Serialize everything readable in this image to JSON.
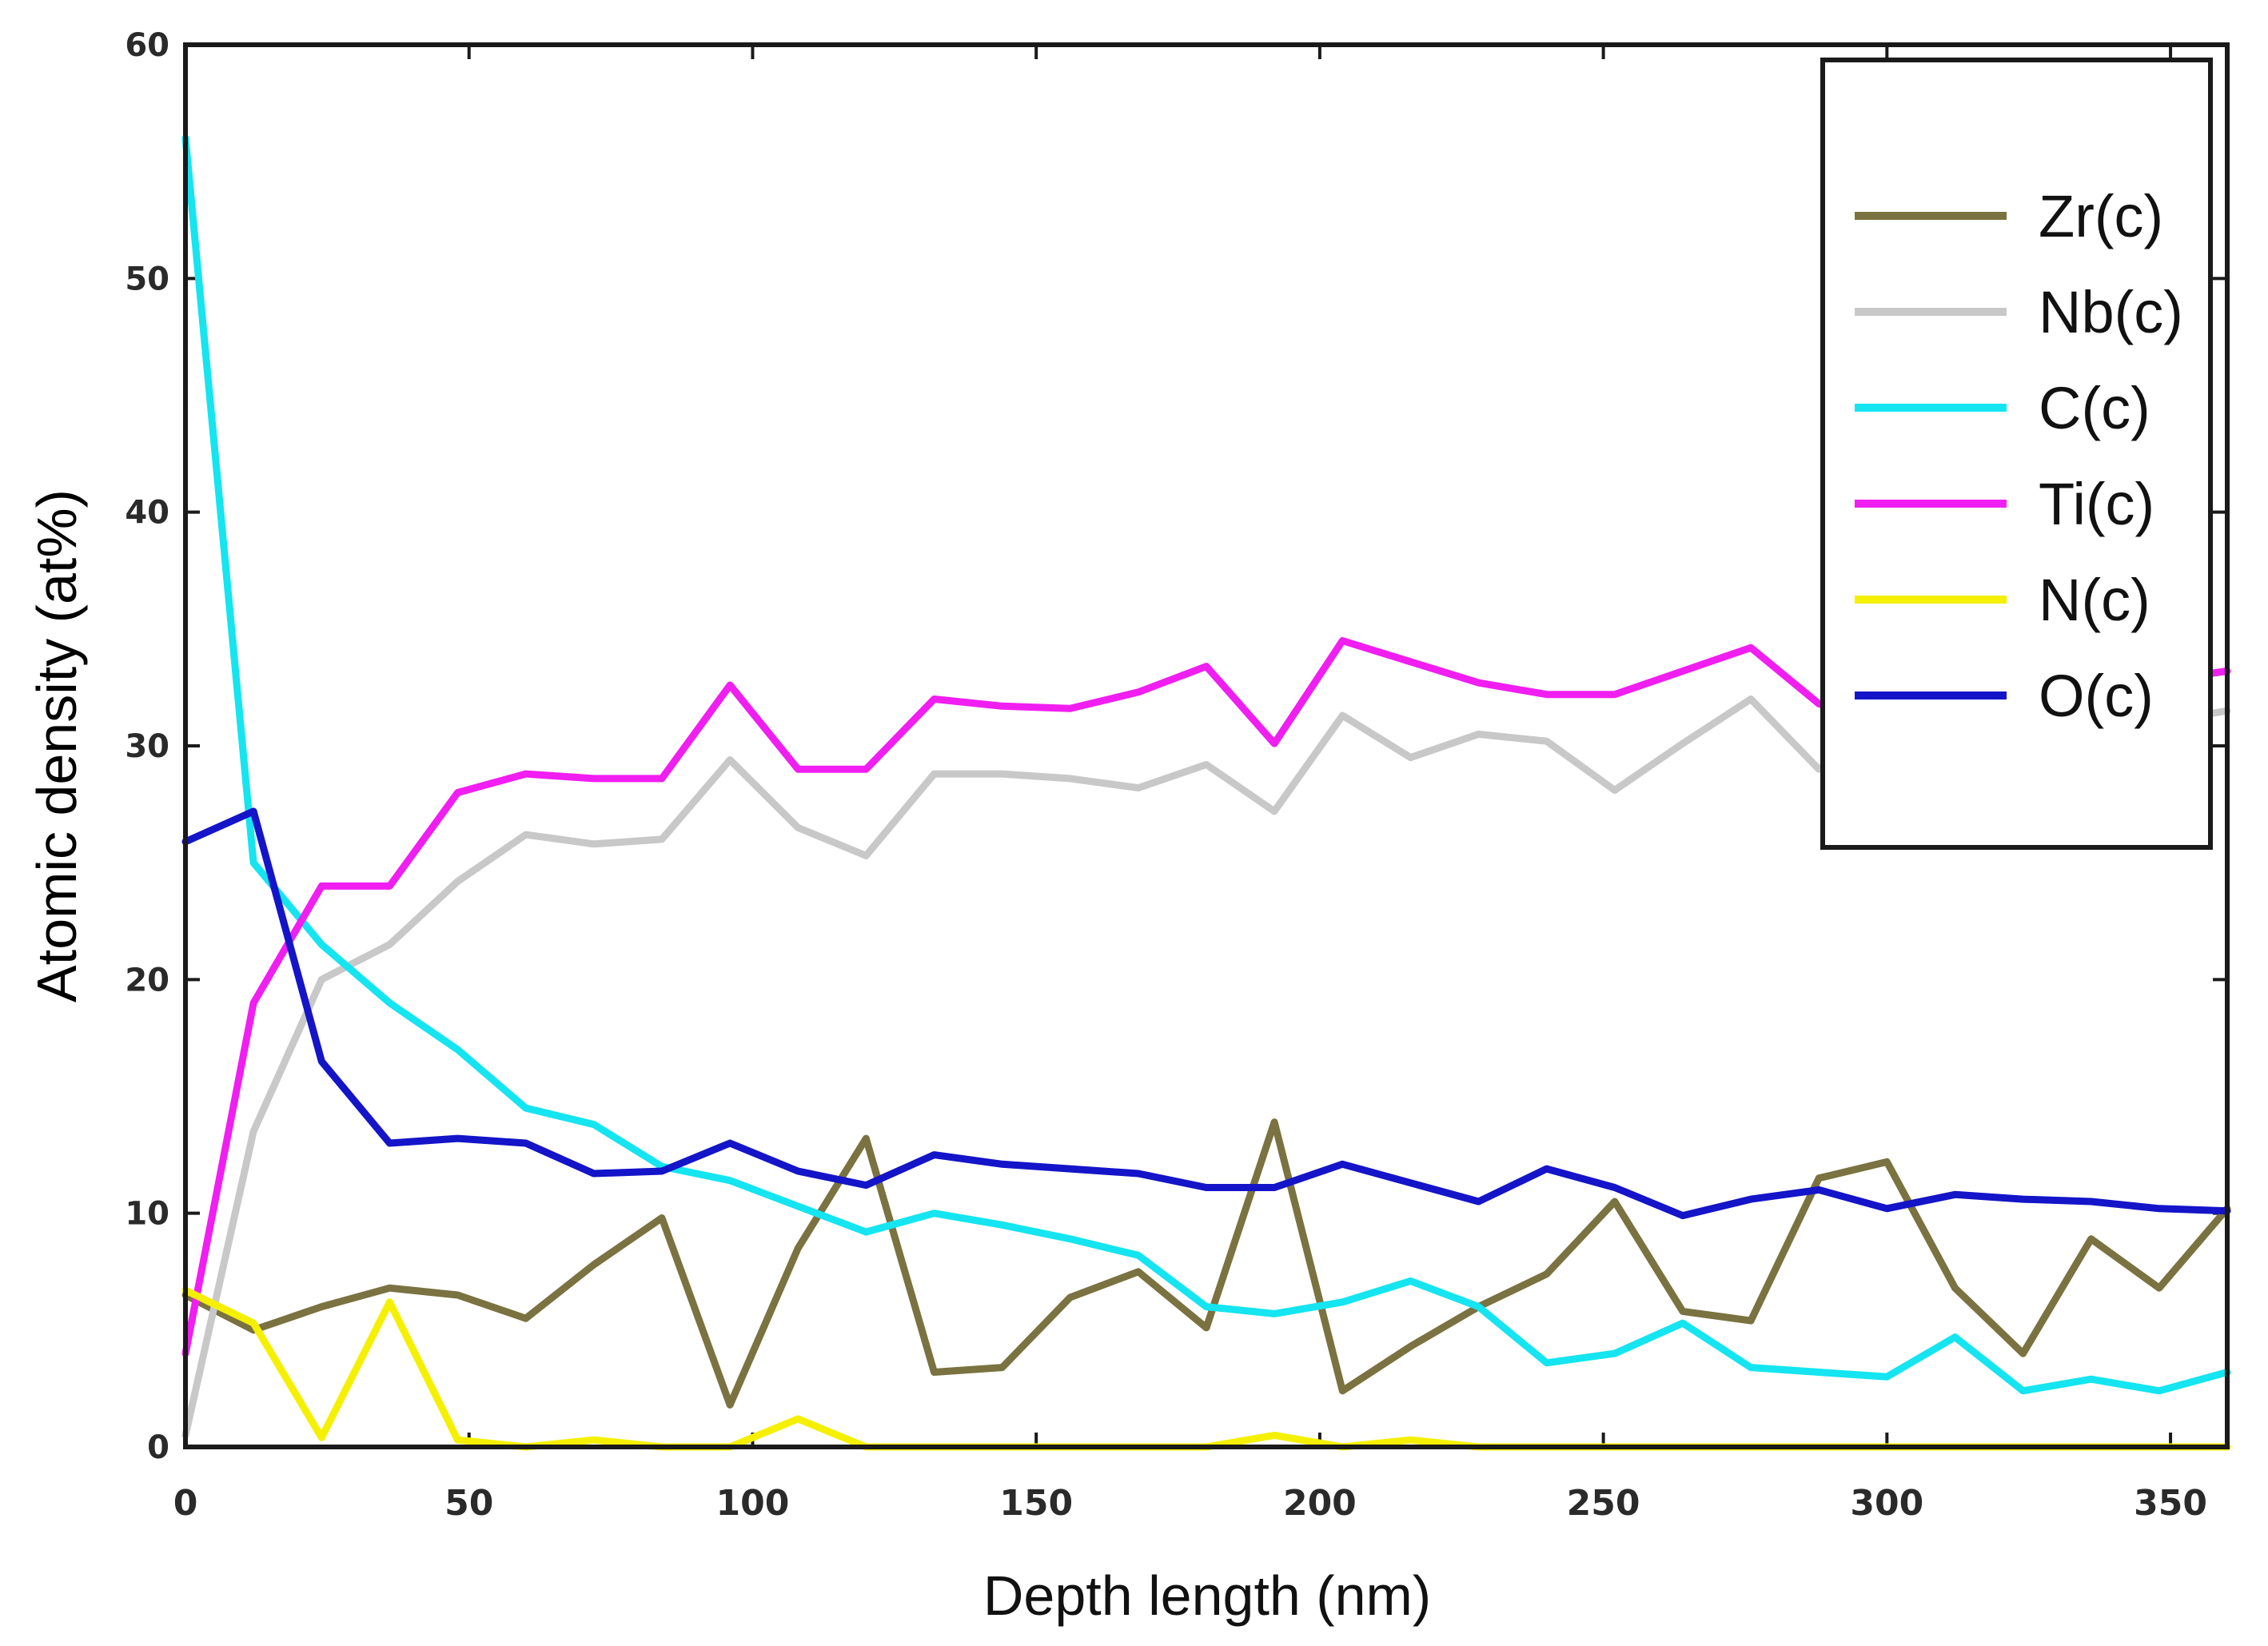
{
  "chart_data": {
    "type": "line",
    "title": "",
    "xlabel": "Depth length (nm)",
    "ylabel": "Atomic density (at%)",
    "xlim": [
      0,
      360
    ],
    "ylim": [
      0,
      60
    ],
    "x_ticks": [
      0,
      50,
      100,
      150,
      200,
      250,
      300,
      350
    ],
    "y_ticks": [
      0,
      10,
      20,
      30,
      40,
      50,
      60
    ],
    "x_tick_labels": [
      "0",
      "50",
      "100",
      "150",
      "200",
      "250",
      "300",
      "350"
    ],
    "y_tick_labels": [
      "0",
      "10",
      "20",
      "30",
      "40",
      "50",
      "60"
    ],
    "grid": false,
    "legend_position": "top-right",
    "x": [
      0,
      12,
      24,
      36,
      48,
      60,
      72,
      84,
      96,
      108,
      120,
      132,
      144,
      156,
      168,
      180,
      192,
      204,
      216,
      228,
      240,
      252,
      264,
      276,
      288,
      300,
      312,
      324,
      336,
      348,
      360
    ],
    "series": [
      {
        "name": "Zr(c)",
        "color": "#7a7240",
        "values": [
          6.5,
          5.0,
          6.0,
          6.8,
          6.5,
          5.5,
          7.8,
          9.8,
          1.8,
          8.5,
          13.2,
          3.2,
          3.4,
          6.4,
          7.5,
          5.1,
          13.9,
          2.4,
          4.3,
          6.0,
          7.4,
          10.5,
          5.8,
          5.4,
          11.5,
          12.2,
          6.8,
          4.0,
          8.9,
          6.8,
          10.2
        ]
      },
      {
        "name": "Nb(c)",
        "color": "#c8c8c8",
        "values": [
          0.5,
          13.5,
          20.0,
          21.5,
          24.2,
          26.2,
          25.8,
          26.0,
          29.4,
          26.5,
          25.3,
          28.8,
          28.8,
          28.6,
          28.2,
          29.2,
          27.2,
          31.3,
          29.5,
          30.5,
          30.2,
          28.1,
          30.1,
          32.0,
          29.0,
          31.0,
          30.0,
          29.5,
          30.5,
          31.0,
          31.5
        ]
      },
      {
        "name": "C(c)",
        "color": "#14e5f0",
        "values": [
          56.0,
          25.0,
          21.5,
          19.0,
          17.0,
          14.5,
          13.8,
          12.0,
          11.4,
          10.3,
          9.2,
          10.0,
          9.5,
          8.9,
          8.2,
          6.0,
          5.7,
          6.2,
          7.1,
          6.0,
          3.6,
          4.0,
          5.3,
          3.4,
          3.2,
          3.0,
          4.7,
          2.4,
          2.9,
          2.4,
          3.2
        ]
      },
      {
        "name": "Ti(c)",
        "color": "#f01ef0",
        "values": [
          4.0,
          19.0,
          24.0,
          24.0,
          28.0,
          28.8,
          28.6,
          28.6,
          32.6,
          29.0,
          29.0,
          32.0,
          31.7,
          31.6,
          32.3,
          33.4,
          30.1,
          34.5,
          33.6,
          32.7,
          32.2,
          32.2,
          33.2,
          34.2,
          31.8,
          31.0,
          32.5,
          32.0,
          33.0,
          32.8,
          33.2
        ]
      },
      {
        "name": "N(c)",
        "color": "#f5f000",
        "values": [
          6.7,
          5.3,
          0.4,
          6.2,
          0.3,
          0.0,
          0.3,
          0.0,
          0.0,
          1.2,
          0.0,
          0.0,
          0.0,
          0.0,
          0.0,
          0.0,
          0.5,
          0.0,
          0.3,
          0.0,
          0.0,
          0.0,
          0.0,
          0.0,
          0.0,
          0.0,
          0.0,
          0.0,
          0.0,
          0.0,
          0.0
        ]
      },
      {
        "name": "O(c)",
        "color": "#1414c8",
        "values": [
          25.9,
          27.2,
          16.5,
          13.0,
          13.2,
          13.0,
          11.7,
          11.8,
          13.0,
          11.8,
          11.2,
          12.5,
          12.1,
          11.9,
          11.7,
          11.1,
          11.1,
          12.1,
          11.3,
          10.5,
          11.9,
          11.1,
          9.9,
          10.6,
          11.0,
          10.2,
          10.8,
          10.6,
          10.5,
          10.2,
          10.1
        ]
      }
    ]
  }
}
